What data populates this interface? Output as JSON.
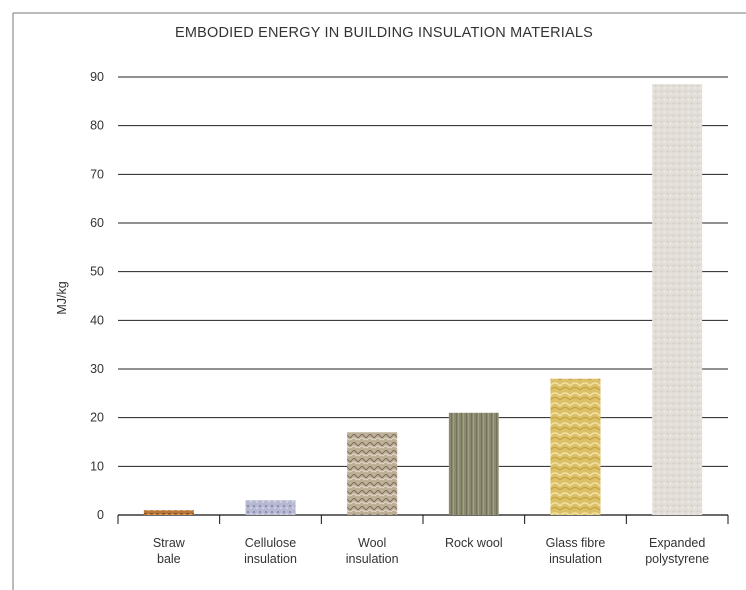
{
  "chart_data": {
    "type": "bar",
    "title": "EMBODIED ENERGY IN BUILDING INSULATION MATERIALS",
    "xlabel": "",
    "ylabel": "MJ/kg",
    "ylim": [
      0,
      90
    ],
    "yticks": [
      0,
      10,
      20,
      30,
      40,
      50,
      60,
      70,
      80,
      90
    ],
    "grid": true,
    "legend": "none",
    "categories": [
      [
        "Straw",
        "bale"
      ],
      [
        "Cellulose",
        "insulation"
      ],
      [
        "Wool",
        "insulation"
      ],
      [
        "Rock wool"
      ],
      [
        "Glass fibre",
        "insulation"
      ],
      [
        "Expanded",
        "polystyrene"
      ]
    ],
    "values": [
      1,
      3,
      17,
      21,
      28,
      88.5
    ],
    "bar_colors": [
      "#b8763a",
      "#a6a8c4",
      "#b8ab95",
      "#8c8a6e",
      "#dcc067",
      "#e3dfd8"
    ]
  }
}
